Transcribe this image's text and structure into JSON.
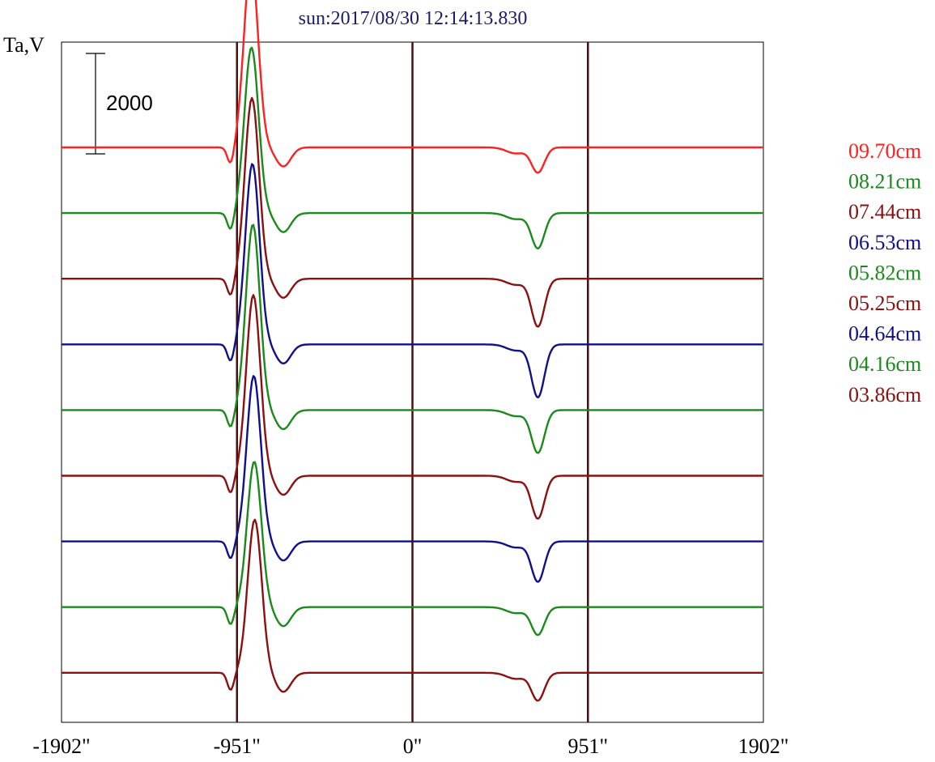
{
  "chart_data": {
    "type": "line",
    "title": "sun:2017/08/30 12:14:13.830",
    "ylabel": "Ta,V",
    "xlabel": "",
    "x_tick_labels": [
      "-1902\"",
      "-951\"",
      "0\"",
      "951\"",
      "1902\""
    ],
    "x_ticks": [
      -1902,
      -951,
      0,
      951,
      1902
    ],
    "xlim": [
      -1902,
      1902
    ],
    "vertical_lines": [
      -951,
      0,
      951
    ],
    "vertical_line_color": "#4a1010",
    "scale_bar_label": "2000",
    "scale_bar_value": 2000,
    "grid": false,
    "legend_position": "right",
    "title_color": "#1a1a6b",
    "series": [
      {
        "name": "09.70cm",
        "color": "#ff2020",
        "peak": 3700,
        "dip": -500
      },
      {
        "name": "08.21cm",
        "color": "#1a8a1a",
        "peak": 3300,
        "dip": -700
      },
      {
        "name": "07.44cm",
        "color": "#8b1010",
        "peak": 3600,
        "dip": -950
      },
      {
        "name": "06.53cm",
        "color": "#10108b",
        "peak": 3600,
        "dip": -1050
      },
      {
        "name": "05.82cm",
        "color": "#1a8a1a",
        "peak": 3700,
        "dip": -850
      },
      {
        "name": "05.25cm",
        "color": "#8b1010",
        "peak": 3600,
        "dip": -850
      },
      {
        "name": "04.64cm",
        "color": "#10108b",
        "peak": 3300,
        "dip": -800
      },
      {
        "name": "04.16cm",
        "color": "#1a8a1a",
        "peak": 2900,
        "dip": -550
      },
      {
        "name": "03.86cm",
        "color": "#8b1010",
        "peak": 3050,
        "dip": -550
      }
    ]
  }
}
